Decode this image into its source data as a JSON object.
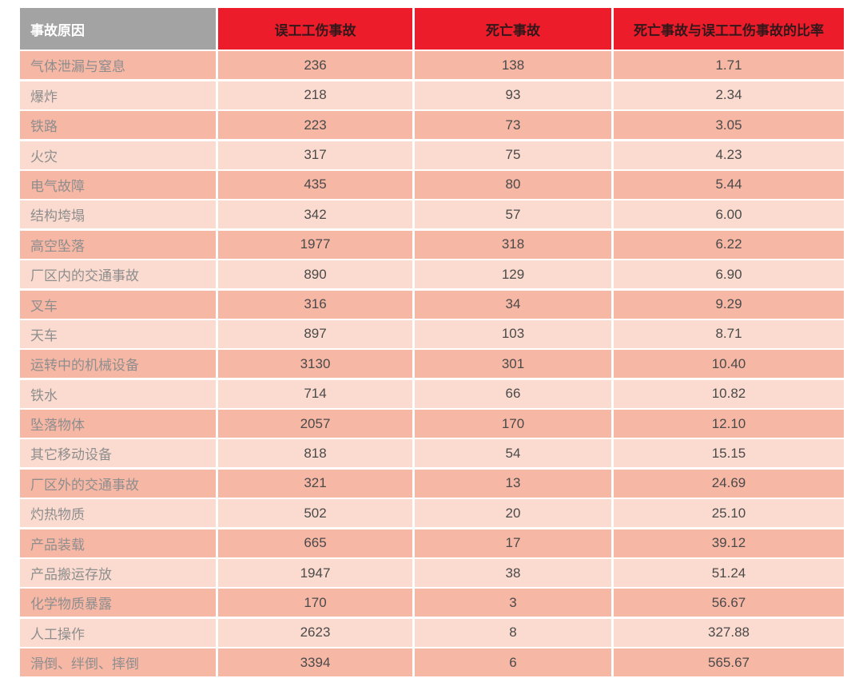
{
  "colors": {
    "header_red": "#ec1c2a",
    "header_gray": "#a3a3a3",
    "header_text_on_red": "#33181b",
    "header_text_on_gray": "#ffffff",
    "row_dark": "#f7b7a5",
    "row_light": "#fbdbcf",
    "label_text": "#8e8e8e",
    "value_text": "#4a4a4a"
  },
  "chart_data": {
    "type": "table",
    "columns": [
      "事故原因",
      "误工工伤事故",
      "死亡事故",
      "死亡事故与误工工伤事故的比率"
    ],
    "rows": [
      [
        "气体泄漏与窒息",
        "236",
        "138",
        "1.71"
      ],
      [
        "爆炸",
        "218",
        "93",
        "2.34"
      ],
      [
        "铁路",
        "223",
        "73",
        "3.05"
      ],
      [
        "火灾",
        "317",
        "75",
        "4.23"
      ],
      [
        "电气故障",
        "435",
        "80",
        "5.44"
      ],
      [
        "结构垮塌",
        "342",
        "57",
        "6.00"
      ],
      [
        "高空坠落",
        "1977",
        "318",
        "6.22"
      ],
      [
        "厂区内的交通事故",
        "890",
        "129",
        "6.90"
      ],
      [
        "叉车",
        "316",
        "34",
        "9.29"
      ],
      [
        "天车",
        "897",
        "103",
        "8.71"
      ],
      [
        "运转中的机械设备",
        "3130",
        "301",
        "10.40"
      ],
      [
        "铁水",
        "714",
        "66",
        "10.82"
      ],
      [
        "坠落物体",
        "2057",
        "170",
        "12.10"
      ],
      [
        "其它移动设备",
        "818",
        "54",
        "15.15"
      ],
      [
        "厂区外的交通事故",
        "321",
        "13",
        "24.69"
      ],
      [
        "灼热物质",
        "502",
        "20",
        "25.10"
      ],
      [
        "产品装载",
        "665",
        "17",
        "39.12"
      ],
      [
        "产品搬运存放",
        "1947",
        "38",
        "51.24"
      ],
      [
        "化学物质暴露",
        "170",
        "3",
        "56.67"
      ],
      [
        "人工操作",
        "2623",
        "8",
        "327.88"
      ],
      [
        "滑倒、绊倒、摔倒",
        "3394",
        "6",
        "565.67"
      ]
    ],
    "row_shading": "alternating, first data row dark",
    "layout": {
      "grid": "off",
      "legend": "none"
    }
  }
}
